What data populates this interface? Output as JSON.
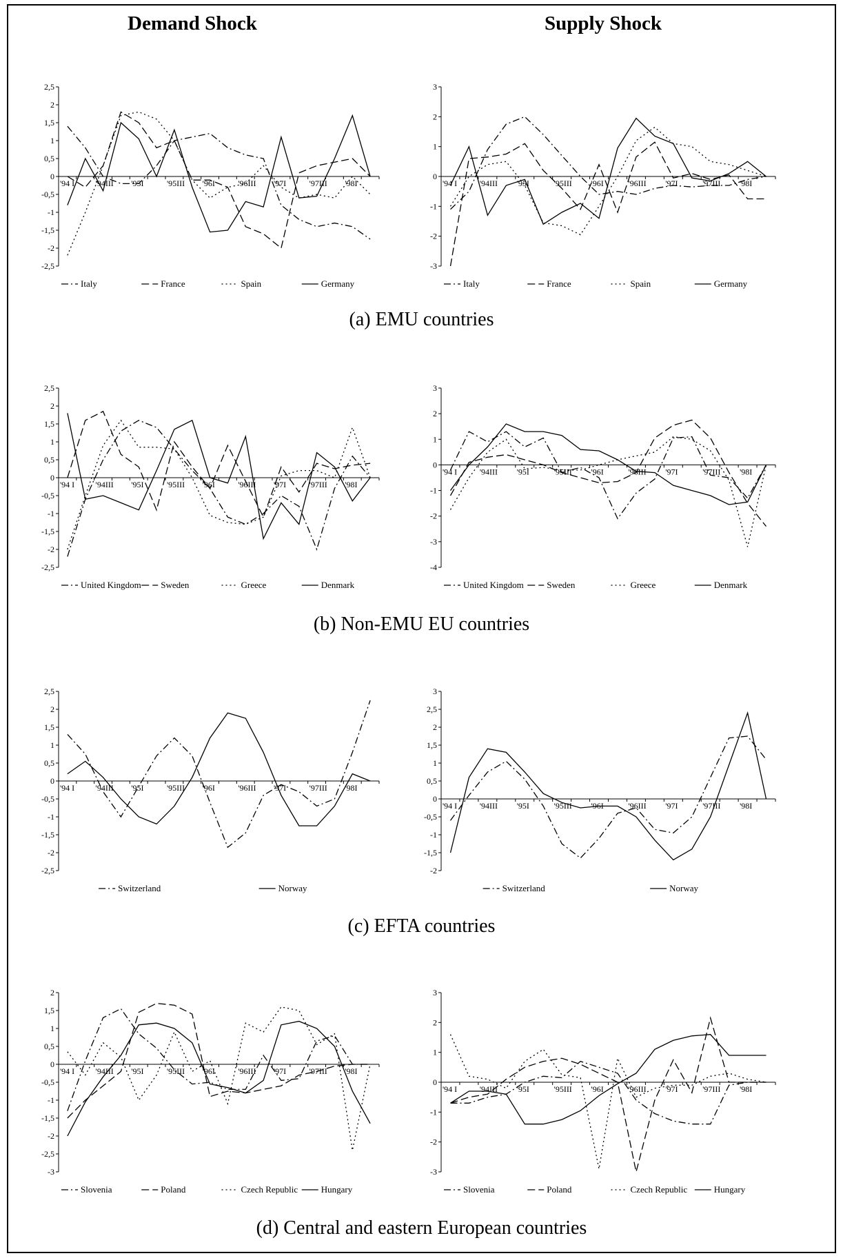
{
  "headers": {
    "demand": "Demand Shock",
    "supply": "Supply Shock"
  },
  "captions": [
    "(a) EMU countries",
    "(b) Non-EMU EU countries",
    "(c) EFTA countries",
    "(d) Central and eastern European countries"
  ],
  "chart_data": [
    {
      "id": "a-demand",
      "type": "line",
      "x": [
        "'94 I",
        "",
        "'94III",
        "",
        "'95I",
        "",
        "'95III",
        "",
        "'96I",
        "",
        "'96III",
        "",
        "'97I",
        "",
        "'97III",
        "",
        "'98I",
        ""
      ],
      "yticks": [
        "2,5",
        "2",
        "1,5",
        "1",
        "0,5",
        "0",
        "-0,5",
        "-1",
        "-1,5",
        "-2",
        "-2,5"
      ],
      "ylim": [
        -2.5,
        2.5
      ],
      "series": [
        {
          "name": "Italy",
          "style": "dashdot",
          "values": [
            1.4,
            0.8,
            0.0,
            -0.2,
            -0.2,
            0.3,
            1.0,
            1.1,
            1.2,
            0.8,
            0.6,
            0.5,
            -0.8,
            -1.2,
            -1.4,
            -1.3,
            -1.4,
            -1.75
          ]
        },
        {
          "name": "France",
          "style": "dash",
          "values": [
            0.0,
            -0.3,
            0.3,
            1.8,
            1.5,
            0.8,
            1.0,
            -0.1,
            -0.1,
            -0.3,
            -1.4,
            -1.6,
            -2.0,
            0.1,
            0.3,
            0.4,
            0.5,
            0.0
          ]
        },
        {
          "name": "Spain",
          "style": "dot",
          "values": [
            -2.2,
            -1.0,
            0.3,
            1.7,
            1.8,
            1.6,
            1.0,
            -0.1,
            -0.6,
            -0.3,
            -0.2,
            0.3,
            -0.3,
            -0.6,
            -0.5,
            -0.6,
            0.0,
            -0.5
          ]
        },
        {
          "name": "Germany",
          "style": "solid",
          "values": [
            -0.8,
            0.5,
            -0.4,
            1.5,
            1.05,
            0.0,
            1.3,
            -0.3,
            -1.55,
            -1.5,
            -0.7,
            -0.85,
            1.1,
            -0.6,
            -0.55,
            0.5,
            1.7,
            0.0
          ]
        }
      ]
    },
    {
      "id": "a-supply",
      "type": "line",
      "x": [
        "'94 I",
        "",
        "'94III",
        "",
        "'95I",
        "",
        "'95III",
        "",
        "'96I",
        "",
        "'96III",
        "",
        "'97I",
        "",
        "'97III",
        "",
        "'98I",
        ""
      ],
      "yticks": [
        "3",
        "2",
        "1",
        "0",
        "-1",
        "-2",
        "-3"
      ],
      "ylim": [
        -3,
        3
      ],
      "series": [
        {
          "name": "Italy",
          "style": "dashdot",
          "values": [
            -1.1,
            -0.5,
            0.9,
            1.75,
            2.0,
            1.4,
            0.7,
            0.0,
            -0.6,
            -0.5,
            -0.6,
            -0.4,
            -0.3,
            -0.35,
            -0.3,
            -0.3,
            -0.1,
            0.0
          ]
        },
        {
          "name": "France",
          "style": "dash",
          "values": [
            -3.0,
            0.6,
            0.65,
            0.75,
            1.1,
            0.2,
            -0.4,
            -1.1,
            0.4,
            -1.2,
            0.65,
            1.15,
            -0.05,
            0.1,
            -0.1,
            0.05,
            -0.75,
            -0.75
          ]
        },
        {
          "name": "Spain",
          "style": "dot",
          "values": [
            -1.0,
            0.0,
            0.4,
            0.5,
            -0.3,
            -1.55,
            -1.65,
            -1.95,
            -1.0,
            0.0,
            1.2,
            1.65,
            1.1,
            1.0,
            0.5,
            0.4,
            0.2,
            0.0
          ]
        },
        {
          "name": "Germany",
          "style": "solid",
          "values": [
            -0.3,
            1.0,
            -1.3,
            -0.3,
            -0.1,
            -1.6,
            -1.2,
            -0.9,
            -1.4,
            0.95,
            1.95,
            1.35,
            1.1,
            -0.05,
            -0.15,
            0.1,
            0.5,
            0.0
          ]
        }
      ]
    },
    {
      "id": "b-demand",
      "type": "line",
      "x": [
        "'94 I",
        "",
        "'94III",
        "",
        "'95I",
        "",
        "'95III",
        "",
        "'96I",
        "",
        "'96III",
        "",
        "'97I",
        "",
        "'97III",
        "",
        "'98I",
        ""
      ],
      "yticks": [
        "2,5",
        "2",
        "1,5",
        "1",
        "0,5",
        "0",
        "-0,5",
        "-1",
        "-1,5",
        "-2",
        "-2,5"
      ],
      "ylim": [
        -2.5,
        2.5
      ],
      "series": [
        {
          "name": "United Kingdom",
          "style": "dashdot",
          "values": [
            -2.2,
            -0.6,
            0.5,
            1.3,
            1.6,
            1.4,
            0.8,
            0.2,
            -0.3,
            -1.1,
            -1.3,
            -1.0,
            -0.5,
            -0.8,
            -2.0,
            -0.3,
            0.6,
            0.0
          ]
        },
        {
          "name": "Sweden",
          "style": "dash",
          "values": [
            0.0,
            1.6,
            1.85,
            0.65,
            0.3,
            -0.9,
            1.0,
            0.3,
            -0.3,
            0.9,
            -0.1,
            -1.1,
            0.3,
            -0.4,
            0.4,
            0.25,
            0.35,
            0.4
          ]
        },
        {
          "name": "Greece",
          "style": "dot",
          "values": [
            -2.0,
            -0.5,
            0.9,
            1.6,
            0.85,
            0.85,
            0.8,
            0.0,
            -1.05,
            -1.25,
            -1.3,
            -1.1,
            0.05,
            0.2,
            0.2,
            0.0,
            1.4,
            0.0
          ]
        },
        {
          "name": "Denmark",
          "style": "solid",
          "values": [
            1.8,
            -0.6,
            -0.5,
            -0.7,
            -0.9,
            0.2,
            1.35,
            1.6,
            0.0,
            -0.15,
            1.15,
            -1.7,
            -0.7,
            -1.3,
            0.7,
            0.3,
            -0.65,
            0.0
          ]
        }
      ]
    },
    {
      "id": "b-supply",
      "type": "line",
      "x": [
        "'94 I",
        "",
        "'94III",
        "",
        "'95I",
        "",
        "'95III",
        "",
        "'96I",
        "",
        "'96III",
        "",
        "'97I",
        "",
        "'97III",
        "",
        "'98I",
        ""
      ],
      "yticks": [
        "3",
        "2",
        "1",
        "0",
        "-1",
        "-2",
        "-3",
        "-4"
      ],
      "ylim": [
        -4,
        3
      ],
      "series": [
        {
          "name": "United Kingdom",
          "style": "dashdot",
          "values": [
            -0.2,
            1.3,
            0.9,
            1.3,
            0.7,
            1.05,
            -0.3,
            -0.1,
            -0.5,
            -2.1,
            -1.1,
            -0.55,
            1.05,
            1.1,
            -0.4,
            -0.5,
            -1.3,
            0.0
          ]
        },
        {
          "name": "Sweden",
          "style": "dash",
          "values": [
            -1.2,
            0.1,
            0.3,
            0.4,
            0.2,
            0.0,
            -0.3,
            -0.5,
            -0.7,
            -0.65,
            -0.3,
            1.05,
            1.55,
            1.75,
            1.05,
            -0.3,
            -1.5,
            -2.4
          ]
        },
        {
          "name": "Greece",
          "style": "dot",
          "values": [
            -1.75,
            -0.5,
            0.5,
            1.0,
            -0.15,
            -0.1,
            -0.2,
            -0.2,
            0.0,
            0.2,
            0.35,
            0.5,
            1.1,
            1.0,
            0.55,
            -0.6,
            -3.2,
            0.0
          ]
        },
        {
          "name": "Denmark",
          "style": "solid",
          "values": [
            -1.0,
            0.0,
            0.7,
            1.6,
            1.3,
            1.3,
            1.15,
            0.6,
            0.55,
            0.2,
            -0.25,
            -0.3,
            -0.8,
            -1.0,
            -1.2,
            -1.55,
            -1.45,
            0.0
          ]
        }
      ]
    },
    {
      "id": "c-demand",
      "type": "line",
      "x": [
        "'94 I",
        "",
        "'94III",
        "",
        "'95I",
        "",
        "'95III",
        "",
        "'96I",
        "",
        "'96III",
        "",
        "'97I",
        "",
        "'97III",
        "",
        "'98I",
        ""
      ],
      "yticks": [
        "2,5",
        "2",
        "1,5",
        "1",
        "0,5",
        "0",
        "-0,5",
        "-1",
        "-1,5",
        "-2",
        "-2,5"
      ],
      "ylim": [
        -2.5,
        2.5
      ],
      "series": [
        {
          "name": "Switzerland",
          "style": "dashdot",
          "values": [
            1.3,
            0.75,
            -0.3,
            -1.0,
            -0.15,
            0.7,
            1.2,
            0.7,
            -0.6,
            -1.85,
            -1.45,
            -0.4,
            -0.1,
            -0.3,
            -0.7,
            -0.5,
            0.8,
            2.25
          ]
        },
        {
          "name": "Norway",
          "style": "solid",
          "values": [
            0.2,
            0.55,
            0.1,
            -0.5,
            -1.0,
            -1.2,
            -0.7,
            0.1,
            1.2,
            1.9,
            1.75,
            0.8,
            -0.4,
            -1.25,
            -1.25,
            -0.7,
            0.2,
            0.0
          ]
        }
      ]
    },
    {
      "id": "c-supply",
      "type": "line",
      "x": [
        "'94 I",
        "",
        "'94III",
        "",
        "'95I",
        "",
        "'95III",
        "",
        "'96I",
        "",
        "'96III",
        "",
        "'97I",
        "",
        "'97III",
        "",
        "'98I",
        ""
      ],
      "yticks": [
        "3",
        "2,5",
        "2",
        "1,5",
        "1",
        "0,5",
        "0",
        "-0,5",
        "-1",
        "-1,5",
        "-2"
      ],
      "ylim": [
        -2,
        3
      ],
      "series": [
        {
          "name": "Switzerland",
          "style": "dashdot",
          "values": [
            -0.6,
            0.1,
            0.75,
            1.05,
            0.55,
            -0.2,
            -1.25,
            -1.65,
            -1.1,
            -0.4,
            -0.25,
            -0.85,
            -0.95,
            -0.5,
            0.6,
            1.7,
            1.75,
            1.1
          ]
        },
        {
          "name": "Norway",
          "style": "solid",
          "values": [
            -1.5,
            0.6,
            1.4,
            1.3,
            0.75,
            0.15,
            -0.1,
            -0.25,
            -0.2,
            -0.2,
            -0.5,
            -1.15,
            -1.7,
            -1.4,
            -0.5,
            0.95,
            2.4,
            0.0
          ]
        }
      ]
    },
    {
      "id": "d-demand",
      "type": "line",
      "x": [
        "'94 I",
        "",
        "'94III",
        "",
        "'95I",
        "",
        "'95III",
        "",
        "'96I",
        "",
        "'96III",
        "",
        "'97I",
        "",
        "'97III",
        "",
        "'98I",
        ""
      ],
      "yticks": [
        "2",
        "1,5",
        "1",
        "0,5",
        "0",
        "-0,5",
        "-1",
        "-1,5",
        "-2",
        "-2,5",
        "-3"
      ],
      "ylim": [
        -3,
        2
      ],
      "series": [
        {
          "name": "Slovenia",
          "style": "dashdot",
          "values": [
            -1.3,
            0.1,
            1.3,
            1.55,
            0.85,
            0.45,
            -0.15,
            -0.55,
            -0.5,
            -0.7,
            -0.7,
            0.25,
            -0.45,
            -0.4,
            0.65,
            0.8,
            0.0,
            0.0
          ]
        },
        {
          "name": "Poland",
          "style": "dash",
          "values": [
            -1.5,
            -1.0,
            -0.6,
            -0.2,
            1.45,
            1.7,
            1.65,
            1.4,
            -0.9,
            -0.75,
            -0.8,
            -0.7,
            -0.6,
            -0.3,
            -0.2,
            -0.05,
            0.0,
            0.0
          ]
        },
        {
          "name": "Czech Republic",
          "style": "dot",
          "values": [
            0.35,
            -0.3,
            0.6,
            0.2,
            -1.0,
            -0.3,
            0.9,
            -0.2,
            0.1,
            -1.1,
            1.15,
            0.9,
            1.6,
            1.5,
            0.55,
            0.85,
            -2.4,
            0.0
          ]
        },
        {
          "name": "Hungary",
          "style": "solid",
          "values": [
            -2.0,
            -1.05,
            -0.35,
            0.25,
            1.1,
            1.15,
            1.0,
            0.6,
            -0.55,
            -0.65,
            -0.8,
            -0.45,
            1.1,
            1.2,
            1.0,
            0.5,
            -0.75,
            -1.65
          ]
        }
      ]
    },
    {
      "id": "d-supply",
      "type": "line",
      "x": [
        "'94 I",
        "",
        "'94III",
        "",
        "'95I",
        "",
        "'95III",
        "",
        "'96I",
        "",
        "'96III",
        "",
        "'97I",
        "",
        "'97III",
        "",
        "'98I",
        ""
      ],
      "yticks": [
        "3",
        "2",
        "1",
        "0",
        "-1",
        "-2",
        "-3"
      ],
      "ylim": [
        -3,
        3
      ],
      "series": [
        {
          "name": "Slovenia",
          "style": "dashdot",
          "values": [
            -0.7,
            -0.7,
            -0.5,
            -0.4,
            0.0,
            0.2,
            0.15,
            0.7,
            0.5,
            0.3,
            -0.6,
            -1.05,
            -1.3,
            -1.4,
            -1.4,
            -0.1,
            0.0,
            0.0
          ]
        },
        {
          "name": "Poland",
          "style": "dash",
          "values": [
            -0.7,
            -0.5,
            -0.4,
            0.1,
            0.5,
            0.7,
            0.8,
            0.6,
            0.3,
            0.0,
            -3.0,
            -0.6,
            0.75,
            -0.35,
            2.15,
            0.0,
            0.0,
            0.0
          ]
        },
        {
          "name": "Czech Republic",
          "style": "dot",
          "values": [
            1.6,
            0.2,
            0.1,
            -0.2,
            0.7,
            1.1,
            0.25,
            0.15,
            -2.9,
            0.8,
            -0.5,
            -0.2,
            -0.1,
            -0.1,
            0.2,
            0.3,
            0.1,
            0.0
          ]
        },
        {
          "name": "Hungary",
          "style": "solid",
          "values": [
            -0.7,
            -0.3,
            -0.3,
            -0.4,
            -1.4,
            -1.4,
            -1.25,
            -0.95,
            -0.45,
            -0.05,
            0.3,
            1.1,
            1.4,
            1.55,
            1.6,
            0.9,
            0.9,
            0.9
          ]
        }
      ]
    }
  ]
}
